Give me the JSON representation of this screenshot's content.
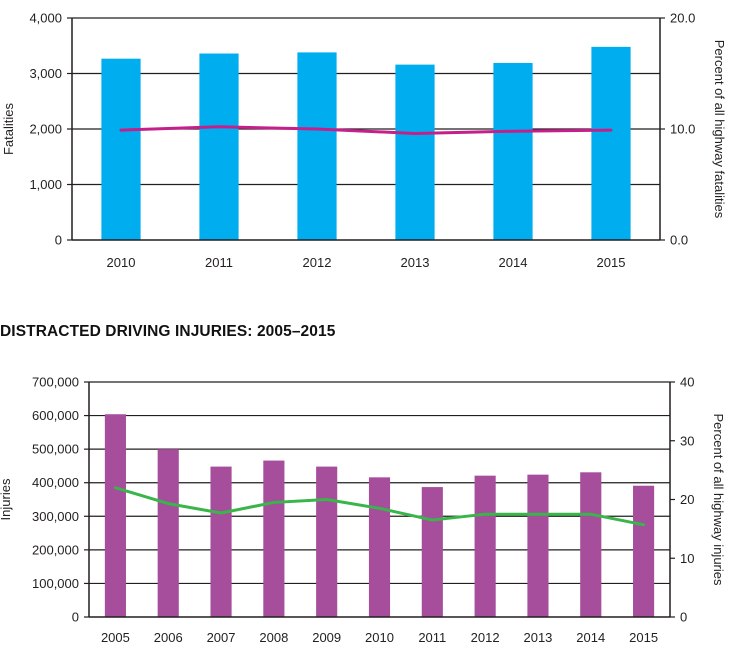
{
  "chart_data": [
    {
      "type": "bar",
      "title": "",
      "categories": [
        "2010",
        "2011",
        "2012",
        "2013",
        "2014",
        "2015"
      ],
      "series": [
        {
          "type": "bar",
          "axis": "left",
          "values": [
            3267,
            3360,
            3380,
            3160,
            3190,
            3480
          ]
        },
        {
          "type": "line",
          "axis": "right",
          "values": [
            9.9,
            10.2,
            10.0,
            9.6,
            9.8,
            9.9
          ]
        }
      ],
      "ylabel": "Fatalities",
      "ylim": [
        0,
        4000
      ],
      "yticks": [
        0,
        1000,
        2000,
        3000,
        4000
      ],
      "ytick_labels": [
        "0",
        "1,000",
        "2,000",
        "3,000",
        "4,000"
      ],
      "y2label": "Percent of all highway fatalities",
      "y2lim": [
        0,
        20
      ],
      "y2ticks": [
        0,
        10,
        20
      ],
      "y2tick_labels": [
        "0.0",
        "10.0",
        "20.0"
      ],
      "grid": true,
      "colors": {
        "bar": "#00aeef",
        "line": "#c41f8a",
        "axis": "#231f20"
      }
    },
    {
      "type": "bar",
      "title": "DISTRACTED DRIVING INJURIES: 2005–2015",
      "categories": [
        "2005",
        "2006",
        "2007",
        "2008",
        "2009",
        "2010",
        "2011",
        "2012",
        "2013",
        "2014",
        "2015"
      ],
      "series": [
        {
          "type": "bar",
          "axis": "left",
          "values": [
            604000,
            500000,
            448000,
            466000,
            448000,
            416000,
            387000,
            421000,
            424000,
            431000,
            391000
          ]
        },
        {
          "type": "line",
          "axis": "right",
          "values": [
            22,
            19.3,
            17.7,
            19.5,
            20,
            18.5,
            16.5,
            17.5,
            17.5,
            17.5,
            15.7
          ]
        }
      ],
      "ylabel": "Injuries",
      "ylim": [
        0,
        700000
      ],
      "yticks": [
        0,
        100000,
        200000,
        300000,
        400000,
        500000,
        600000,
        700000
      ],
      "ytick_labels": [
        "0",
        "100,000",
        "200,000",
        "300,000",
        "400,000",
        "500,000",
        "600,000",
        "700,000"
      ],
      "y2label": "Percent of all highway injuries",
      "y2lim": [
        0,
        40
      ],
      "y2ticks": [
        0,
        10,
        20,
        30,
        40
      ],
      "y2tick_labels": [
        "0",
        "10",
        "20",
        "30",
        "40"
      ],
      "grid": true,
      "colors": {
        "bar": "#a64d9c",
        "line": "#39b54a",
        "axis": "#231f20"
      }
    }
  ]
}
